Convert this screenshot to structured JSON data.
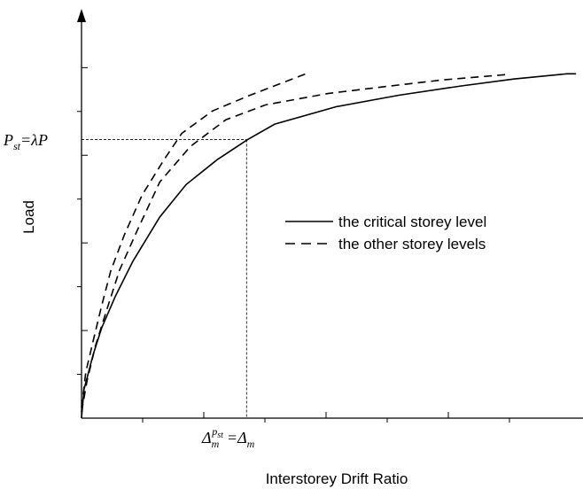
{
  "chart_data": {
    "type": "line",
    "x_label": "Interstorey Drift Ratio",
    "y_label": "Load",
    "xlim": [
      0,
      8.5
    ],
    "ylim": [
      0,
      9.2
    ],
    "xticks": [
      1,
      2,
      3,
      4,
      5,
      6,
      7
    ],
    "yticks": [
      1,
      2,
      3,
      4,
      5,
      6,
      7,
      8
    ],
    "series": [
      {
        "name": "the critical storey level",
        "color": "#000000",
        "dash": "solid",
        "x": [
          0,
          0.04,
          0.19,
          0.33,
          0.55,
          0.84,
          1.28,
          1.71,
          2.22,
          2.72,
          3.16,
          4.17,
          5.19,
          6.2,
          7.07,
          7.94,
          8.09
        ],
        "values": [
          0,
          0.65,
          1.45,
          2.06,
          2.77,
          3.58,
          4.59,
          5.33,
          5.9,
          6.36,
          6.71,
          7.11,
          7.37,
          7.58,
          7.74,
          7.86,
          7.86
        ]
      },
      {
        "name": "the other storey levels",
        "color": "#000000",
        "dash": "dashed",
        "x": [
          0,
          0.09,
          0.23,
          0.41,
          0.62,
          0.91,
          1.28,
          1.78,
          2.36,
          3.01,
          4.03,
          5.04,
          5.91,
          6.93
        ],
        "values": [
          0.14,
          0.85,
          1.66,
          2.46,
          3.37,
          4.28,
          5.39,
          6.2,
          6.81,
          7.15,
          7.41,
          7.58,
          7.72,
          7.84
        ]
      },
      {
        "color": "#000000",
        "dash": "dashed",
        "x": [
          0,
          0.07,
          0.19,
          0.33,
          0.48,
          0.7,
          0.99,
          1.35,
          1.64,
          2.14,
          2.72,
          3.67
        ],
        "values": [
          0.24,
          1.05,
          1.76,
          2.57,
          3.37,
          4.18,
          5.09,
          5.9,
          6.5,
          7.01,
          7.35,
          7.86
        ]
      }
    ],
    "y_marker": {
      "value": 6.36,
      "parts": [
        "P",
        "st",
        "=",
        "λP"
      ]
    },
    "x_marker": {
      "value": 2.7,
      "parts": [
        "Δ",
        "m",
        "p",
        "st",
        "=Δ",
        "m"
      ]
    }
  }
}
